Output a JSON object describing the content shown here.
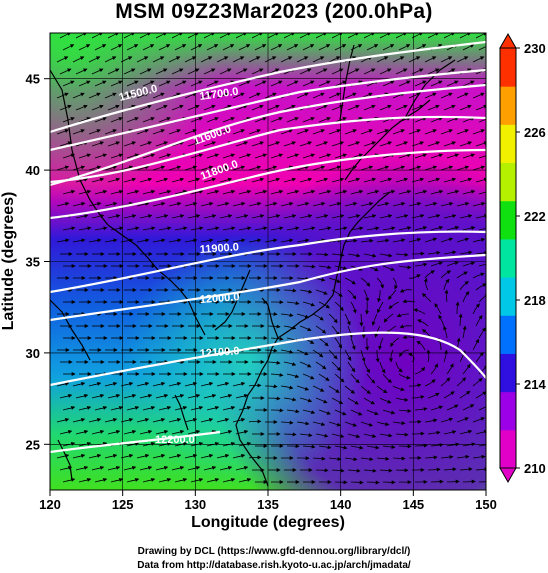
{
  "title": "MSM 09Z23Mar2023 (200.0hPa)",
  "x_axis": {
    "label": "Longitude (degrees)",
    "ticks": [
      "120",
      "125",
      "130",
      "135",
      "140",
      "145",
      "150"
    ],
    "range": [
      120,
      150
    ]
  },
  "y_axis": {
    "label": "Latitude  (degrees)",
    "ticks": [
      "25",
      "30",
      "35",
      "40",
      "45"
    ],
    "range": [
      22.5,
      47.5
    ]
  },
  "colorbar": {
    "ticks": [
      "210",
      "214",
      "218",
      "222",
      "226",
      "230"
    ],
    "range": [
      210,
      230
    ],
    "colors": [
      "#e000c8",
      "#9b00e6",
      "#3010e0",
      "#0070ff",
      "#00c8e6",
      "#00e6a0",
      "#10e010",
      "#b4f000",
      "#f0f000",
      "#ffa000",
      "#ff3000"
    ]
  },
  "contours": [
    {
      "label": "11500.0"
    },
    {
      "label": "11600.0"
    },
    {
      "label": "11700.0"
    },
    {
      "label": "11800.0"
    },
    {
      "label": "11900.0"
    },
    {
      "label": "12000.0"
    },
    {
      "label": "12100.0"
    },
    {
      "label": "12200.0"
    }
  ],
  "footer": {
    "line1": "Drawing by DCL (https://www.gfd-dennou.org/library/dcl/)",
    "line2": "Data from http://database.rish.kyoto-u.ac.jp/arch/jmadata/"
  }
}
